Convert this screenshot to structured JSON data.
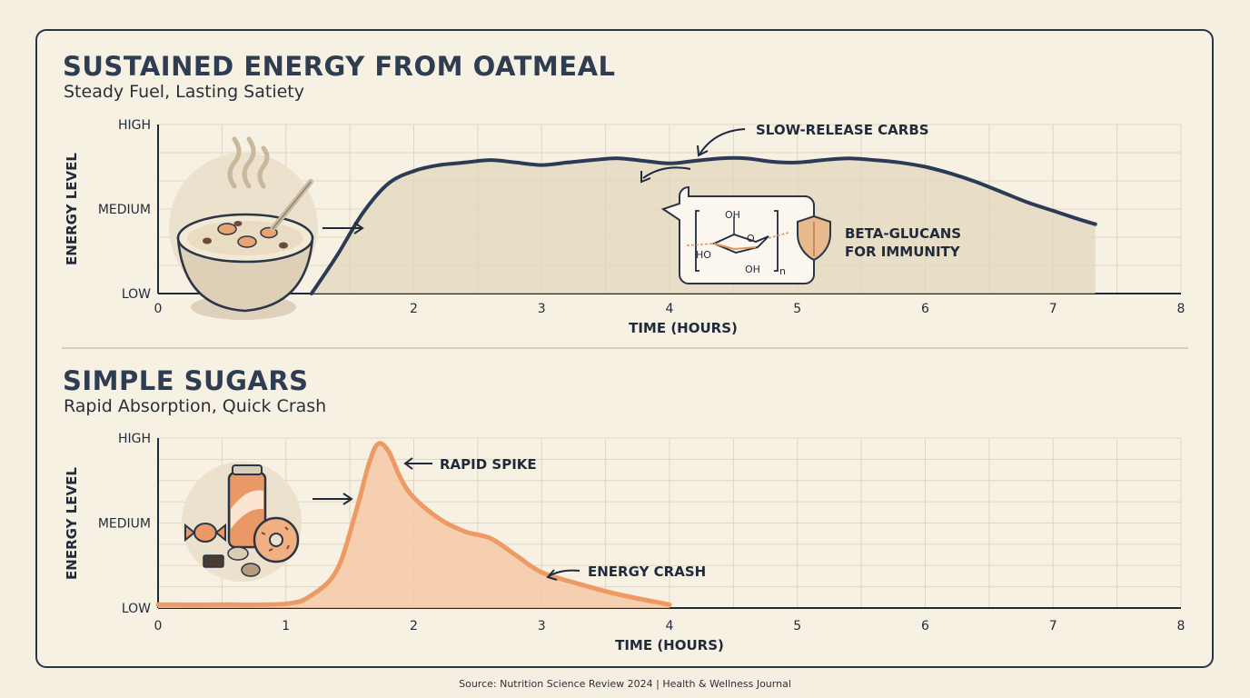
{
  "source": "Source: Nutrition Science Review 2024 | Health & Wellness Journal",
  "chart_data": [
    {
      "type": "area",
      "title": "SUSTAINED ENERGY FROM OATMEAL",
      "subtitle": "Steady Fuel, Lasting Satiety",
      "xlabel": "TIME (HOURS)",
      "ylabel": "ENERGY LEVEL",
      "xlim": [
        0,
        8
      ],
      "ylim": [
        0,
        2
      ],
      "x_ticks": [
        "0",
        "1",
        "2",
        "3",
        "4",
        "5",
        "6",
        "7",
        "8"
      ],
      "y_ticks": [
        "LOW",
        "MEDIUM",
        "HIGH"
      ],
      "grid": true,
      "color": "#2b3a55",
      "fill": "#e3d6bd",
      "x": [
        1.2,
        1.4,
        1.6,
        1.8,
        2.0,
        2.2,
        2.4,
        2.6,
        2.8,
        3.0,
        3.2,
        3.4,
        3.6,
        3.8,
        4.0,
        4.2,
        4.4,
        4.6,
        4.8,
        5.0,
        5.2,
        5.4,
        5.6,
        5.8,
        6.0,
        6.2,
        6.4,
        6.6,
        6.8,
        7.0,
        7.2,
        7.33
      ],
      "y": [
        0.0,
        0.45,
        0.95,
        1.3,
        1.45,
        1.52,
        1.55,
        1.58,
        1.55,
        1.52,
        1.55,
        1.58,
        1.6,
        1.57,
        1.54,
        1.57,
        1.6,
        1.6,
        1.56,
        1.55,
        1.58,
        1.6,
        1.58,
        1.55,
        1.5,
        1.42,
        1.32,
        1.2,
        1.08,
        0.98,
        0.88,
        0.82
      ],
      "annotations": [
        {
          "text": "SLOW-RELEASE CARBS",
          "x": 4.7,
          "y": 1.9
        },
        {
          "text": "BETA-GLUCANS",
          "x": 5.1,
          "y": 0.72
        },
        {
          "text": "FOR IMMUNITY",
          "x": 5.1,
          "y": 0.5
        }
      ]
    },
    {
      "type": "area",
      "title": "SIMPLE SUGARS",
      "subtitle": "Rapid Absorption, Quick Crash",
      "xlabel": "TIME (HOURS)",
      "ylabel": "ENERGY LEVEL",
      "xlim": [
        0,
        8
      ],
      "ylim": [
        0,
        2
      ],
      "x_ticks": [
        "0",
        "1",
        "2",
        "3",
        "4",
        "5",
        "6",
        "7",
        "8"
      ],
      "y_ticks": [
        "LOW",
        "MEDIUM",
        "HIGH"
      ],
      "grid": true,
      "color": "#ee9a64",
      "fill": "#f6c9a7",
      "x": [
        0,
        0.5,
        1.0,
        1.2,
        1.4,
        1.55,
        1.65,
        1.72,
        1.8,
        1.9,
        2.0,
        2.2,
        2.4,
        2.6,
        2.8,
        3.0,
        3.3,
        3.6,
        4.0
      ],
      "y": [
        0.04,
        0.04,
        0.05,
        0.15,
        0.45,
        1.15,
        1.7,
        1.93,
        1.85,
        1.52,
        1.3,
        1.05,
        0.9,
        0.82,
        0.62,
        0.42,
        0.28,
        0.16,
        0.04
      ],
      "annotations": [
        {
          "text": "RAPID SPIKE",
          "x": 2.2,
          "y": 1.68
        },
        {
          "text": "ENERGY CRASH",
          "x": 3.35,
          "y": 0.42
        }
      ]
    }
  ],
  "illustrations": [
    "oatmeal-bowl-icon",
    "beta-glucan-molecule-icon",
    "shield-icon",
    "soda-can-icon",
    "donut-icon",
    "candy-icon",
    "chocolate-icon"
  ]
}
